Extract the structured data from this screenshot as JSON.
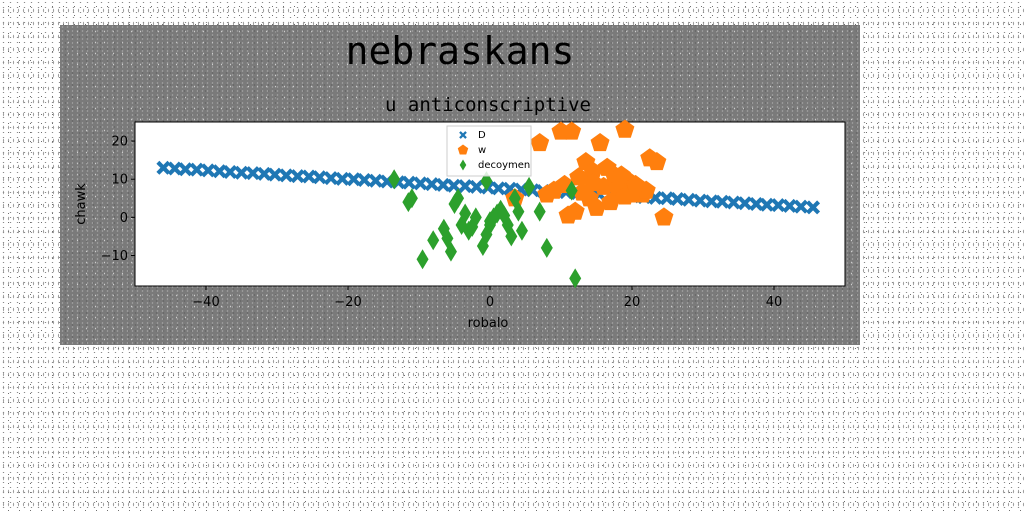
{
  "figure": {
    "background": "#7a7a7a",
    "noise": true
  },
  "chart_data": {
    "type": "scatter",
    "suptitle": "nebraskans",
    "title": "u anticonscriptive",
    "xlabel": "robalo",
    "ylabel": "chawk",
    "xlim": [
      -50,
      50
    ],
    "ylim": [
      -18,
      25
    ],
    "xticks": [
      -40,
      -20,
      0,
      20,
      40
    ],
    "yticks": [
      -10,
      0,
      10,
      20
    ],
    "grid": false,
    "legend_placement": "upper center",
    "series": [
      {
        "name": "D",
        "marker": "x-filled",
        "color": "#1f77b4",
        "x": [
          -46.0,
          -44.4,
          -42.9,
          -41.3,
          -39.7,
          -38.1,
          -36.6,
          -35.0,
          -33.4,
          -31.8,
          -30.3,
          -28.7,
          -27.1,
          -25.5,
          -24.0,
          -22.4,
          -20.8,
          -19.2,
          -17.7,
          -16.1,
          -14.5,
          -12.9,
          -11.4,
          -9.8,
          -8.2,
          -6.6,
          -5.1,
          -3.5,
          -1.9,
          -0.3,
          1.2,
          2.8,
          4.4,
          6.0,
          7.5,
          9.1,
          10.7,
          12.3,
          13.8,
          15.4,
          17.0,
          18.6,
          20.1,
          21.7,
          23.3,
          24.9,
          26.4,
          28.0,
          29.6,
          31.2,
          32.7,
          34.3,
          35.9,
          37.5,
          39.0,
          40.6,
          42.2,
          43.8,
          45.5
        ],
        "y": [
          13.0,
          12.8,
          12.6,
          12.5,
          12.3,
          12.1,
          11.9,
          11.7,
          11.6,
          11.4,
          11.2,
          11.0,
          10.8,
          10.7,
          10.5,
          10.3,
          10.1,
          10.0,
          9.8,
          9.6,
          9.4,
          9.2,
          9.1,
          8.9,
          8.7,
          8.5,
          8.3,
          8.2,
          8.0,
          7.8,
          7.6,
          7.5,
          7.3,
          7.1,
          6.9,
          6.7,
          6.6,
          6.4,
          6.2,
          6.0,
          5.8,
          5.7,
          5.5,
          5.3,
          5.1,
          5.0,
          4.8,
          4.6,
          4.4,
          4.2,
          4.1,
          3.9,
          3.7,
          3.5,
          3.3,
          3.2,
          3.0,
          2.8,
          2.6
        ]
      },
      {
        "name": "w",
        "marker": "pentagon",
        "color": "#ff7f0e",
        "x": [
          7.0,
          10.0,
          11.5,
          15.5,
          19.0,
          13.5,
          14.5,
          16.5,
          22.5,
          23.5,
          17.5,
          12.5,
          10.5,
          9.0,
          8.0,
          16.0,
          19.5,
          21.5,
          13.0,
          14.0,
          18.0,
          20.0,
          22.0,
          12.0,
          15.0,
          17.0,
          19.0,
          11.0,
          24.5,
          3.5,
          18.5,
          20.5,
          14.5
        ],
        "y": [
          19.5,
          22.5,
          22.5,
          19.5,
          23.0,
          14.5,
          12.0,
          13.0,
          15.5,
          14.5,
          11.0,
          10.5,
          8.5,
          7.0,
          6.0,
          8.0,
          9.5,
          6.0,
          6.5,
          5.0,
          7.5,
          6.0,
          7.0,
          1.5,
          2.5,
          4.0,
          5.5,
          0.5,
          0.0,
          5.0,
          11.0,
          8.5,
          9.0
        ]
      },
      {
        "name": "decoymen",
        "marker": "diamond",
        "color": "#2ca02c",
        "x": [
          -13.5,
          -11.0,
          -11.5,
          -5.0,
          -4.5,
          -3.5,
          -4.0,
          -3.0,
          -2.0,
          -6.0,
          -6.5,
          -8.0,
          -9.5,
          -5.5,
          -0.5,
          0.0,
          0.5,
          1.0,
          1.5,
          2.0,
          2.5,
          3.0,
          3.5,
          4.0,
          4.5,
          5.5,
          7.0,
          8.0,
          11.5,
          12.0,
          -1.0,
          -0.5,
          0.0,
          -2.5
        ],
        "y": [
          10.0,
          5.0,
          4.0,
          3.5,
          5.0,
          1.0,
          -2.0,
          -3.5,
          0.0,
          -5.5,
          -3.0,
          -6.0,
          -11.0,
          -9.0,
          9.5,
          -1.0,
          0.0,
          1.0,
          2.0,
          0.5,
          -2.0,
          -5.0,
          5.0,
          1.5,
          -3.5,
          8.0,
          1.5,
          -8.0,
          7.0,
          -16.0,
          -7.5,
          -4.5,
          -2.0,
          -2.5
        ]
      }
    ]
  }
}
